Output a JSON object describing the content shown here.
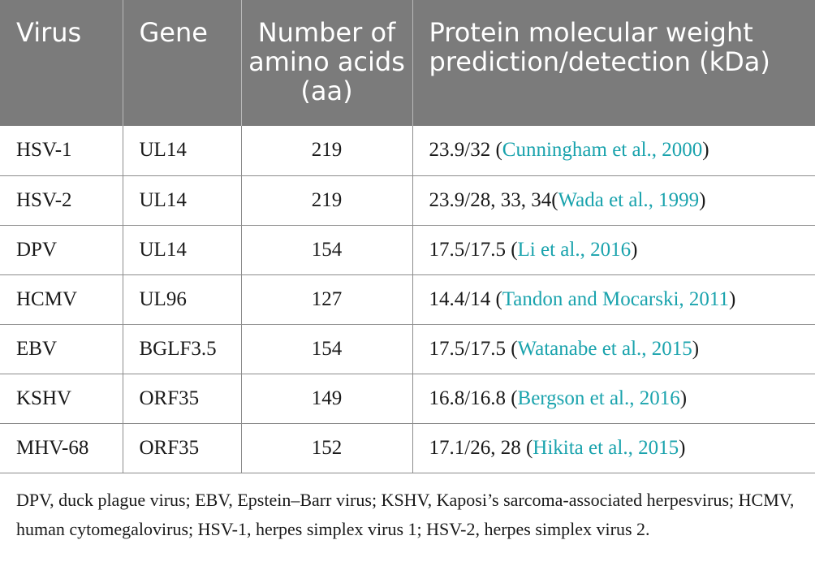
{
  "table": {
    "headers": [
      "Virus",
      "Gene",
      "Number of amino acids (aa)",
      "Protein molecular weight prediction/detection (kDa)"
    ],
    "rows": [
      {
        "virus": "HSV-1",
        "gene": "UL14",
        "aa": "219",
        "mw": "23.9/32 (",
        "cite": "Cunningham et al., 2000",
        "close": ")"
      },
      {
        "virus": "HSV-2",
        "gene": "UL14",
        "aa": "219",
        "mw": "23.9/28, 33, 34(",
        "cite": "Wada et al., 1999",
        "close": ")"
      },
      {
        "virus": "DPV",
        "gene": "UL14",
        "aa": "154",
        "mw": "17.5/17.5 (",
        "cite": "Li et al., 2016",
        "close": ")"
      },
      {
        "virus": "HCMV",
        "gene": "UL96",
        "aa": "127",
        "mw": "14.4/14 (",
        "cite": "Tandon and Mocarski, 2011",
        "close": ")"
      },
      {
        "virus": "EBV",
        "gene": "BGLF3.5",
        "aa": "154",
        "mw": "17.5/17.5 (",
        "cite": "Watanabe et al., 2015",
        "close": ")"
      },
      {
        "virus": "KSHV",
        "gene": "ORF35",
        "aa": "149",
        "mw": "16.8/16.8 (",
        "cite": "Bergson et al., 2016",
        "close": ")"
      },
      {
        "virus": "MHV-68",
        "gene": "ORF35",
        "aa": "152",
        "mw": "17.1/26, 28 (",
        "cite": "Hikita et al., 2015",
        "close": ")"
      }
    ]
  },
  "footnote": "DPV, duck plague virus; EBV, Epstein–Barr virus; KSHV, Kaposi’s sarcoma-associated herpesvirus; HCMV, human cytomegalovirus; HSV-1, herpes simplex virus 1; HSV-2, herpes simplex virus 2.",
  "colors": {
    "header_bg": "#7b7b7b",
    "citation": "#1aa3ad"
  }
}
